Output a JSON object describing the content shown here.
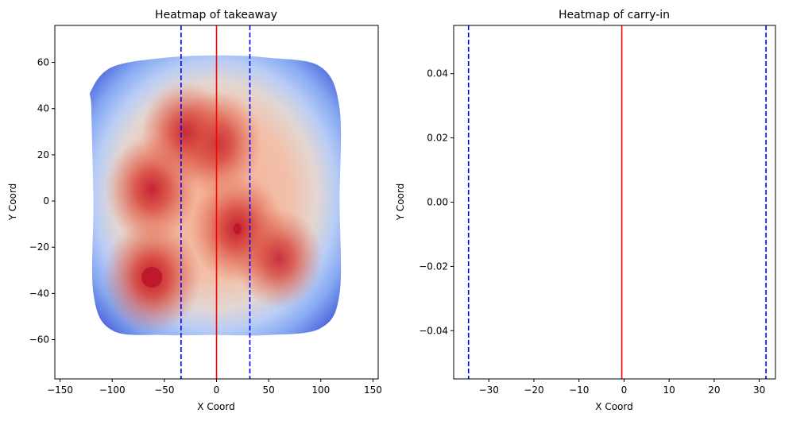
{
  "chart_data": [
    {
      "type": "heatmap",
      "title": "Heatmap of takeaway",
      "xlabel": "X Coord",
      "ylabel": "Y Coord",
      "xlim": [
        -155,
        155
      ],
      "ylim": [
        -77,
        76
      ],
      "xticks": [
        -150,
        -100,
        -50,
        0,
        50,
        100,
        150
      ],
      "xtick_labels": [
        "−150",
        "−100",
        "−50",
        "0",
        "50",
        "100",
        "150"
      ],
      "yticks": [
        -60,
        -40,
        -20,
        0,
        20,
        40,
        60
      ],
      "ytick_labels": [
        "−60",
        "−40",
        "−20",
        "0",
        "20",
        "40",
        "60"
      ],
      "colormap": "coolwarm",
      "density_outline": [
        [
          -120,
          48
        ],
        [
          -100,
          58
        ],
        [
          -50,
          62
        ],
        [
          0,
          63
        ],
        [
          50,
          62
        ],
        [
          100,
          58
        ],
        [
          118,
          40
        ],
        [
          118,
          0
        ],
        [
          118,
          -40
        ],
        [
          100,
          -55
        ],
        [
          50,
          -58
        ],
        [
          0,
          -58
        ],
        [
          -50,
          -58
        ],
        [
          -100,
          -56
        ],
        [
          -118,
          -40
        ],
        [
          -118,
          0
        ],
        [
          -120,
          40
        ]
      ],
      "density_peaks": [
        {
          "x": -62,
          "y": -33,
          "level": 1.0
        },
        {
          "x": -62,
          "y": 5,
          "level": 0.85
        },
        {
          "x": 20,
          "y": -12,
          "level": 0.9
        },
        {
          "x": 0,
          "y": 25,
          "level": 0.8
        },
        {
          "x": 60,
          "y": -25,
          "level": 0.7
        },
        {
          "x": -30,
          "y": 30,
          "level": 0.7
        }
      ],
      "vlines": [
        {
          "x": 0,
          "color": "#ff0000",
          "style": "solid"
        },
        {
          "x": -34,
          "color": "#0000ff",
          "style": "dashed"
        },
        {
          "x": 32,
          "color": "#0000ff",
          "style": "dashed"
        }
      ],
      "grid": false
    },
    {
      "type": "heatmap",
      "title": "Heatmap of carry-in",
      "xlabel": "X Coord",
      "ylabel": "Y Coord",
      "xlim": [
        -37.8,
        33.6
      ],
      "ylim": [
        -0.055,
        0.055
      ],
      "xticks": [
        -30,
        -20,
        -10,
        0,
        10,
        20,
        30
      ],
      "xtick_labels": [
        "−30",
        "−20",
        "−10",
        "0",
        "10",
        "20",
        "30"
      ],
      "yticks": [
        -0.04,
        -0.02,
        0,
        0.02,
        0.04
      ],
      "ytick_labels": [
        "−0.04",
        "−0.02",
        "0.00",
        "0.02",
        "0.04"
      ],
      "vlines": [
        {
          "x": -0.5,
          "color": "#ff0000",
          "style": "solid"
        },
        {
          "x": -34.5,
          "color": "#0000ff",
          "style": "dashed"
        },
        {
          "x": 31.5,
          "color": "#0000ff",
          "style": "dashed"
        }
      ],
      "grid": false
    }
  ]
}
